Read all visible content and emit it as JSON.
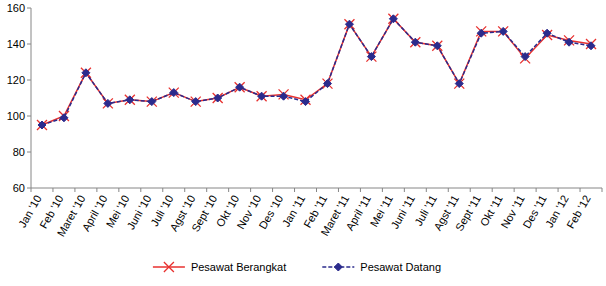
{
  "chart_data": {
    "type": "line",
    "categories": [
      "Jan '10",
      "Feb '10",
      "Maret '10",
      "April '10",
      "Mei '10",
      "Juni '10",
      "Juli '10",
      "Agst '10",
      "Sept '10",
      "Okt '10",
      "Nov '10",
      "Des '10",
      "Jan '11",
      "Feb '11",
      "Maret '11",
      "April '11",
      "Mei '11",
      "Juni '11",
      "Juli '11",
      "Agst '11",
      "Sept '11",
      "Okt '11",
      "Nov '11",
      "Des '11",
      "Jan '12",
      "Feb '12"
    ],
    "series": [
      {
        "name": "Pesawat Berangkat",
        "color": "#e8312f",
        "marker": "x",
        "line_style": "solid",
        "values": [
          95,
          100,
          124,
          107,
          109,
          108,
          113,
          108,
          110,
          116,
          111,
          112,
          109,
          118,
          151,
          133,
          154,
          141,
          139,
          118,
          147,
          147,
          132,
          145,
          142,
          140
        ]
      },
      {
        "name": "Pesawat Datang",
        "color": "#2b2b8c",
        "marker": "diamond",
        "line_style": "dashed",
        "values": [
          95,
          99,
          124,
          107,
          109,
          108,
          113,
          108,
          110,
          116,
          111,
          111,
          108,
          118,
          151,
          133,
          154,
          141,
          139,
          118,
          146,
          147,
          133,
          146,
          141,
          139
        ]
      }
    ],
    "ylim": [
      60,
      160
    ],
    "yticks": [
      60,
      80,
      100,
      120,
      140,
      160
    ],
    "grid": false,
    "legend": "bottom"
  }
}
